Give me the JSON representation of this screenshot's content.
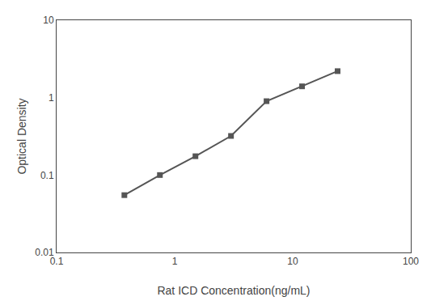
{
  "chart_data": {
    "type": "line",
    "x": [
      0.375,
      0.75,
      1.5,
      3.0,
      6.0,
      12.0,
      24.0
    ],
    "values": [
      0.055,
      0.1,
      0.175,
      0.32,
      0.9,
      1.4,
      2.2
    ],
    "xlabel": "Rat ICD Concentration(ng/mL)",
    "ylabel": "Optical Density",
    "xlim": [
      0.1,
      100
    ],
    "ylim": [
      0.01,
      10
    ],
    "xticks": [
      0.1,
      1,
      10,
      100
    ],
    "yticks": [
      0.01,
      0.1,
      1,
      10
    ],
    "log": true,
    "grid": false,
    "color": "#555555",
    "marker": "square",
    "line_style": "solid"
  }
}
